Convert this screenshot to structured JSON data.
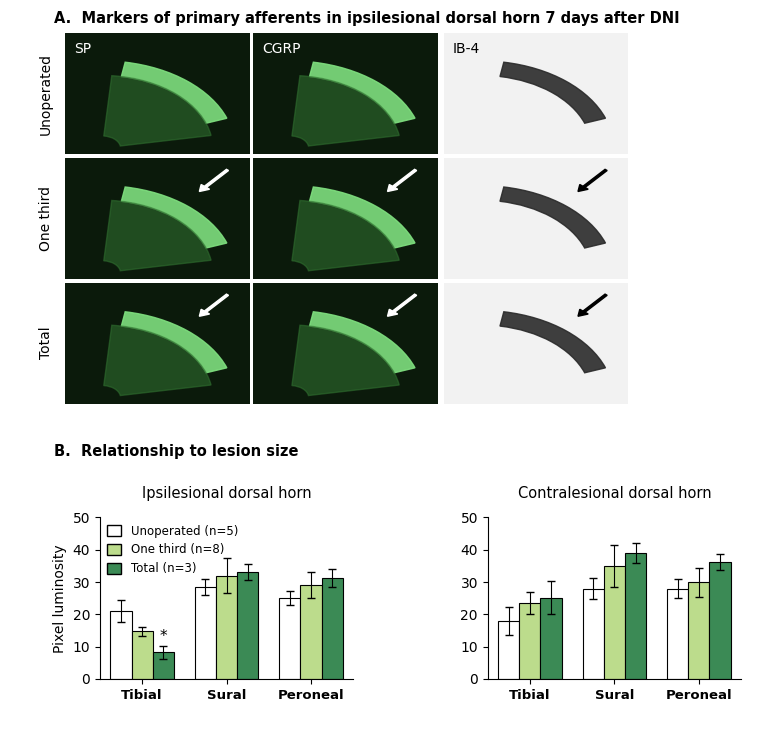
{
  "panel_a": {
    "title": "A.  Markers of primary afferents in ipsilesional dorsal horn 7 days after DNI",
    "columns": [
      "SP",
      "CGRP",
      "IB-4"
    ],
    "rows": [
      "Unoperated",
      "One third",
      "Total"
    ]
  },
  "panel_b": {
    "title": "B.  Relationship to lesion size"
  },
  "chart_data": [
    {
      "type": "bar",
      "title": "Ipsilesional dorsal horn",
      "y_label": "Pixel luminosity",
      "categories": [
        "Tibial",
        "Sural",
        "Peroneal"
      ],
      "ylim": [
        0,
        50
      ],
      "yticks": [
        0,
        10,
        20,
        30,
        40,
        50
      ],
      "legend": "upper left",
      "series": [
        {
          "name": "Unoperated (n=5)",
          "color": "#ffffff",
          "values": [
            21,
            28.5,
            25
          ],
          "errors": [
            3.5,
            2.5,
            2.2
          ]
        },
        {
          "name": "One third (n=8)",
          "color": "#bcdc8c",
          "values": [
            14.7,
            32,
            29.2
          ],
          "errors": [
            1.3,
            5.5,
            4
          ]
        },
        {
          "name": "Total (n=3)",
          "color": "#3b8a55",
          "values": [
            8.3,
            33.2,
            31.3
          ],
          "errors": [
            2,
            2.5,
            2.8
          ]
        }
      ],
      "annotations": [
        {
          "text": "*",
          "category": "Tibial",
          "series": "Total (n=3)"
        }
      ]
    },
    {
      "type": "bar",
      "title": "Contralesional dorsal horn",
      "categories": [
        "Tibial",
        "Sural",
        "Peroneal"
      ],
      "ylim": [
        0,
        50
      ],
      "yticks": [
        0,
        10,
        20,
        30,
        40,
        50
      ],
      "series": [
        {
          "name": "Unoperated (n=5)",
          "color": "#ffffff",
          "values": [
            18,
            28,
            28
          ],
          "errors": [
            4.3,
            3.2,
            2.8
          ]
        },
        {
          "name": "One third (n=8)",
          "color": "#bcdc8c",
          "values": [
            23.5,
            35,
            30
          ],
          "errors": [
            3.5,
            6.5,
            4.5
          ]
        },
        {
          "name": "Total (n=3)",
          "color": "#3b8a55",
          "values": [
            25.2,
            39,
            36.3
          ],
          "errors": [
            5.2,
            3.2,
            2.5
          ]
        }
      ]
    }
  ]
}
